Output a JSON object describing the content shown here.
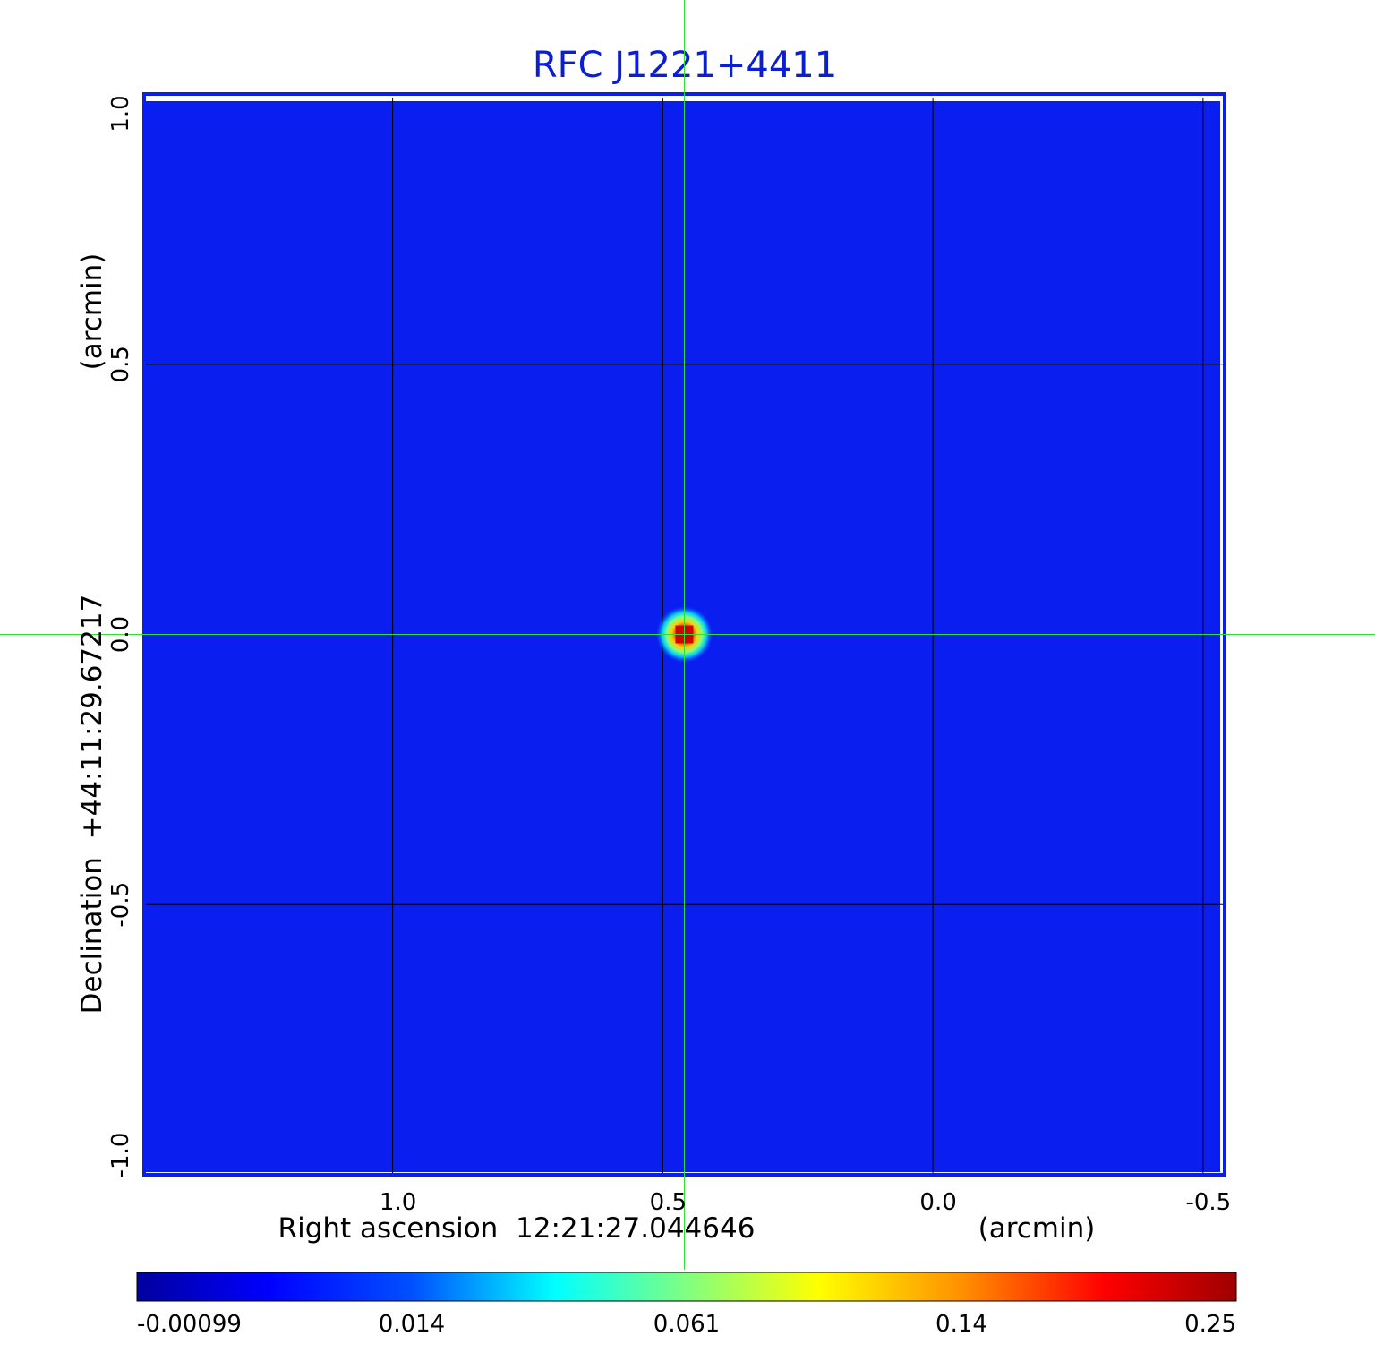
{
  "chart_data": {
    "type": "heatmap",
    "title": "RFC J1221+4411",
    "xlabel": "Right ascension  12:21:27.044646",
    "xunit": "(arcmin)",
    "ylabel": "Declination  +44:11:29.67217",
    "yunit": "(arcmin)",
    "x_ticks": [
      "1.0",
      "0.5",
      "0.0",
      "-0.5"
    ],
    "y_ticks": [
      "1.0",
      "0.5",
      "0.0",
      "-0.5",
      "-1.0"
    ],
    "x_tick_values": [
      1.0,
      0.5,
      0.0,
      -0.5
    ],
    "y_tick_values": [
      1.0,
      0.5,
      0.0,
      -0.5,
      -1.0
    ],
    "xlim": [
      1.46,
      -0.54
    ],
    "ylim": [
      -1.0,
      1.0
    ],
    "grid": true,
    "crosshair": [
      0.46,
      0.0
    ],
    "source_peak": {
      "x": 0.46,
      "y": 0.0,
      "value": 0.25
    },
    "colorbar": {
      "ticks": [
        "-0.00099",
        "0.014",
        "0.061",
        "0.14",
        "0.25"
      ],
      "colormap": [
        "#00009f",
        "#0000ff",
        "#00ffff",
        "#ffff00",
        "#ff0000",
        "#9f0000"
      ]
    },
    "colors": {
      "background": "#0a1ef0",
      "title": "#0a1ed2",
      "crosshair": "#33dd33",
      "grid": "#000000",
      "frame": "#0a1ef0"
    }
  }
}
